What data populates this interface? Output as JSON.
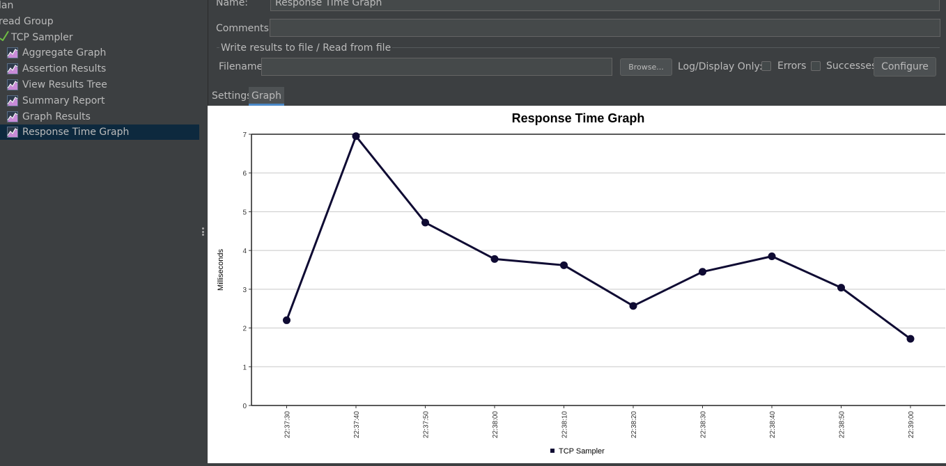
{
  "tree": {
    "items": [
      {
        "label": "lan",
        "icon": "test-plan-icon"
      },
      {
        "label": "read Group",
        "icon": "thread-group-icon"
      },
      {
        "label": "TCP Sampler",
        "icon": "sampler-icon"
      },
      {
        "label": "Aggregate Graph",
        "icon": "listener-graph-icon"
      },
      {
        "label": "Assertion Results",
        "icon": "listener-graph-icon"
      },
      {
        "label": "View Results Tree",
        "icon": "listener-graph-icon"
      },
      {
        "label": "Summary Report",
        "icon": "listener-graph-icon"
      },
      {
        "label": "Graph Results",
        "icon": "listener-graph-icon"
      },
      {
        "label": "Response Time Graph",
        "icon": "listener-graph-icon"
      }
    ],
    "selected_index": 8
  },
  "form": {
    "name_label": "Name:",
    "name_value": "Response Time Graph",
    "comments_label": "Comments:",
    "comments_value": "",
    "fieldset_title": "Write results to file / Read from file",
    "filename_label": "Filename",
    "filename_value": "",
    "browse_label": "Browse...",
    "log_display_label": "Log/Display Only:",
    "errors_label": "Errors",
    "errors_checked": false,
    "successes_label": "Successes",
    "successes_checked": false,
    "configure_label": "Configure"
  },
  "tabs": [
    {
      "label": "Settings",
      "active": false
    },
    {
      "label": "Graph",
      "active": true
    }
  ],
  "colors": {
    "series": "#0f0b33",
    "selection": "#0d293e",
    "tab_underline": "#4a88c7"
  },
  "chart_data": {
    "type": "line",
    "title": "Response Time Graph",
    "xlabel": "",
    "ylabel": "Milliseconds",
    "ylim": [
      0,
      7
    ],
    "yticks": [
      0,
      1,
      2,
      3,
      4,
      5,
      6,
      7
    ],
    "grid": true,
    "legend": "bottom",
    "categories": [
      "22:37:30",
      "22:37:40",
      "22:37:50",
      "22:38:00",
      "22:38:10",
      "22:38:20",
      "22:38:30",
      "22:38:40",
      "22:38:50",
      "22:39:00"
    ],
    "series": [
      {
        "name": "TCP Sampler",
        "values": [
          2.2,
          6.95,
          4.72,
          3.78,
          3.62,
          2.57,
          3.45,
          3.85,
          3.04,
          1.72
        ]
      }
    ]
  }
}
